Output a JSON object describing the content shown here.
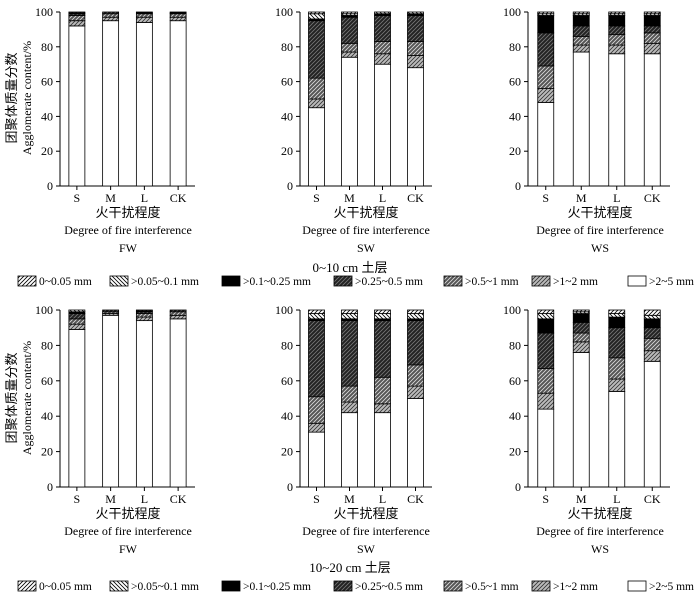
{
  "figure": {
    "ylabel_cn": "团聚体质量分数",
    "ylabel_en": "Agglomerate content/%",
    "xlabel_cn": "火干扰程度",
    "xlabel_en": "Degree of fire interference",
    "yticks": [
      0,
      20,
      40,
      60,
      80,
      100
    ]
  },
  "legend": [
    {
      "label": "0~0.05 mm",
      "pattern": "fwd"
    },
    {
      "label": ">0.05~0.1 mm",
      "pattern": "back"
    },
    {
      "label": ">0.1~0.25 mm",
      "pattern": "black"
    },
    {
      "label": ">0.25~0.5 mm",
      "pattern": "dark"
    },
    {
      "label": ">0.5~1 mm",
      "pattern": "med"
    },
    {
      "label": ">1~2 mm",
      "pattern": "light"
    },
    {
      "label": ">2~5 mm",
      "pattern": "white"
    }
  ],
  "colors": {
    "ink": "#000000",
    "background": "#ffffff",
    "dark_gray": "#333333",
    "mid_gray": "#666666"
  },
  "rows": [
    {
      "title": "0~10 cm 土层"
    },
    {
      "title": "10~20 cm 土层"
    }
  ],
  "chart_data": [
    {
      "type": "bar",
      "stacked": true,
      "layer": "0~10 cm 土层",
      "panel": "FW",
      "categories": [
        "S",
        "M",
        "L",
        "CK"
      ],
      "ylim": [
        0,
        100
      ],
      "xlabel": "火干扰程度 Degree of fire interference",
      "ylabel": "团聚体质量分数 Agglomerate content/%",
      "stacks": [
        {
          "S": [
            92,
            3,
            3,
            1,
            0.5,
            0.5,
            0
          ]
        },
        {
          "M": [
            95,
            2,
            2,
            1,
            0,
            0,
            0
          ]
        },
        {
          "L": [
            94,
            3,
            2,
            0.5,
            0.5,
            0,
            0
          ]
        },
        {
          "CK": [
            95,
            2,
            2,
            0.5,
            0.5,
            0,
            0
          ]
        }
      ],
      "segment_order": [
        ">2~5 mm",
        ">1~2 mm",
        ">0.5~1 mm",
        ">0.25~0.5 mm",
        ">0.1~0.25 mm",
        ">0.05~0.1 mm",
        "0~0.05 mm"
      ]
    },
    {
      "type": "bar",
      "stacked": true,
      "layer": "0~10 cm 土层",
      "panel": "SW",
      "categories": [
        "S",
        "M",
        "L",
        "CK"
      ],
      "ylim": [
        0,
        100
      ],
      "stacks": [
        {
          "S": [
            45,
            5,
            12,
            33,
            1,
            3,
            1
          ]
        },
        {
          "M": [
            74,
            3,
            5,
            15,
            1,
            1,
            1
          ]
        },
        {
          "L": [
            70,
            6,
            7,
            15,
            1,
            1,
            0
          ]
        },
        {
          "CK": [
            68,
            7,
            8,
            15,
            1,
            1,
            0
          ]
        }
      ]
    },
    {
      "type": "bar",
      "stacked": true,
      "layer": "0~10 cm 土层",
      "panel": "WS",
      "categories": [
        "S",
        "M",
        "L",
        "CK"
      ],
      "ylim": [
        0,
        100
      ],
      "stacks": [
        {
          "S": [
            48,
            8,
            13,
            19,
            10,
            1,
            1
          ]
        },
        {
          "M": [
            77,
            4,
            5,
            6,
            6,
            1,
            1
          ]
        },
        {
          "L": [
            76,
            5,
            6,
            5,
            6,
            1,
            1
          ]
        },
        {
          "CK": [
            76,
            6,
            6,
            4,
            6,
            1,
            1
          ]
        }
      ]
    },
    {
      "type": "bar",
      "stacked": true,
      "layer": "10~20 cm 土层",
      "panel": "FW",
      "categories": [
        "S",
        "M",
        "L",
        "CK"
      ],
      "ylim": [
        0,
        100
      ],
      "stacks": [
        {
          "S": [
            89,
            3,
            3,
            3,
            1,
            1,
            0
          ]
        },
        {
          "M": [
            97,
            1,
            1,
            1,
            0,
            0,
            0
          ]
        },
        {
          "L": [
            94,
            2,
            2,
            1,
            0.5,
            0.5,
            0
          ]
        },
        {
          "CK": [
            95,
            2,
            2,
            1,
            0,
            0,
            0
          ]
        }
      ]
    },
    {
      "type": "bar",
      "stacked": true,
      "layer": "10~20 cm 土层",
      "panel": "SW",
      "categories": [
        "S",
        "M",
        "L",
        "CK"
      ],
      "ylim": [
        0,
        100
      ],
      "stacks": [
        {
          "S": [
            31,
            5,
            15,
            43,
            1,
            3,
            2
          ]
        },
        {
          "M": [
            42,
            6,
            9,
            37,
            1,
            3,
            2
          ]
        },
        {
          "L": [
            42,
            5,
            15,
            32,
            1,
            3,
            2
          ]
        },
        {
          "CK": [
            50,
            7,
            12,
            25,
            1,
            3,
            2
          ]
        }
      ]
    },
    {
      "type": "bar",
      "stacked": true,
      "layer": "10~20 cm 土层",
      "panel": "WS",
      "categories": [
        "S",
        "M",
        "L",
        "CK"
      ],
      "ylim": [
        0,
        100
      ],
      "stacks": [
        {
          "S": [
            44,
            9,
            14,
            20,
            8,
            3,
            2
          ]
        },
        {
          "M": [
            76,
            6,
            5,
            6,
            5,
            1,
            1
          ]
        },
        {
          "L": [
            54,
            7,
            12,
            17,
            6,
            2,
            2
          ]
        },
        {
          "CK": [
            71,
            6,
            7,
            6,
            5,
            2,
            3
          ]
        }
      ]
    }
  ]
}
